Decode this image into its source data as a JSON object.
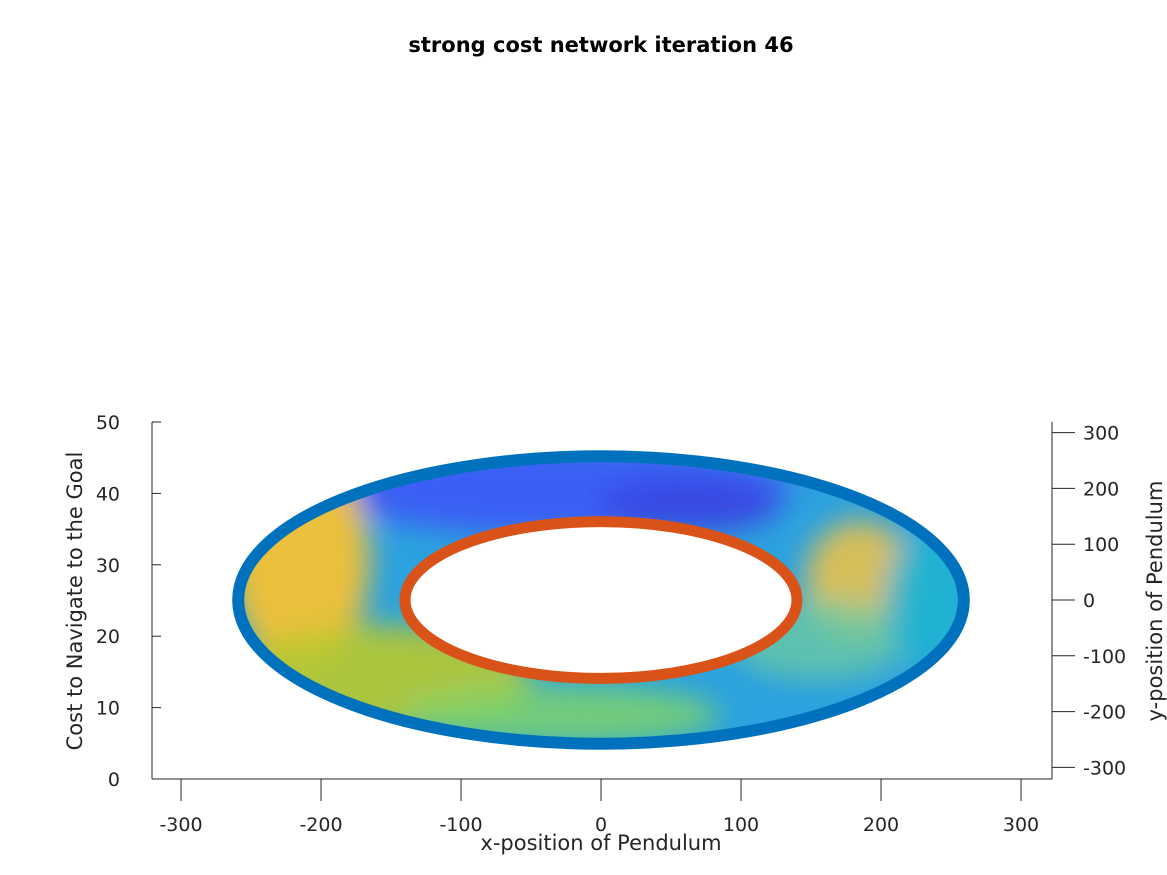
{
  "chart_data": {
    "type": "surface",
    "view": "3d-perspective",
    "title": "strong cost network iteration 46",
    "xlabel": "x-position of Pendulum",
    "ylabel": "y-position of Pendulum",
    "zlabel": "Cost to Navigate to the Goal",
    "xlim": [
      -320,
      320
    ],
    "ylim": [
      -320,
      320
    ],
    "zlim": [
      0,
      50
    ],
    "x_ticks": [
      -300,
      -200,
      -100,
      0,
      100,
      200,
      300
    ],
    "y_ticks": [
      300,
      200,
      100,
      0,
      -100,
      -200,
      -300
    ],
    "z_ticks": [
      0,
      10,
      20,
      30,
      40,
      50
    ],
    "colormap": "parula",
    "surface": {
      "shape": "annulus",
      "inner_radius": 140,
      "outer_radius": 262,
      "z_level": 25
    },
    "rings": [
      {
        "name": "inner boundary",
        "radius": 140,
        "color": "#D95319"
      },
      {
        "name": "outer boundary",
        "radius": 262,
        "color": "#0072BD"
      }
    ],
    "colors": {
      "low": "#3D5BF5",
      "mid": "#1FB4D0",
      "high": "#F4C233",
      "inner_ring": "#D95319",
      "outer_ring": "#0072BD",
      "axis": "#262626"
    }
  }
}
